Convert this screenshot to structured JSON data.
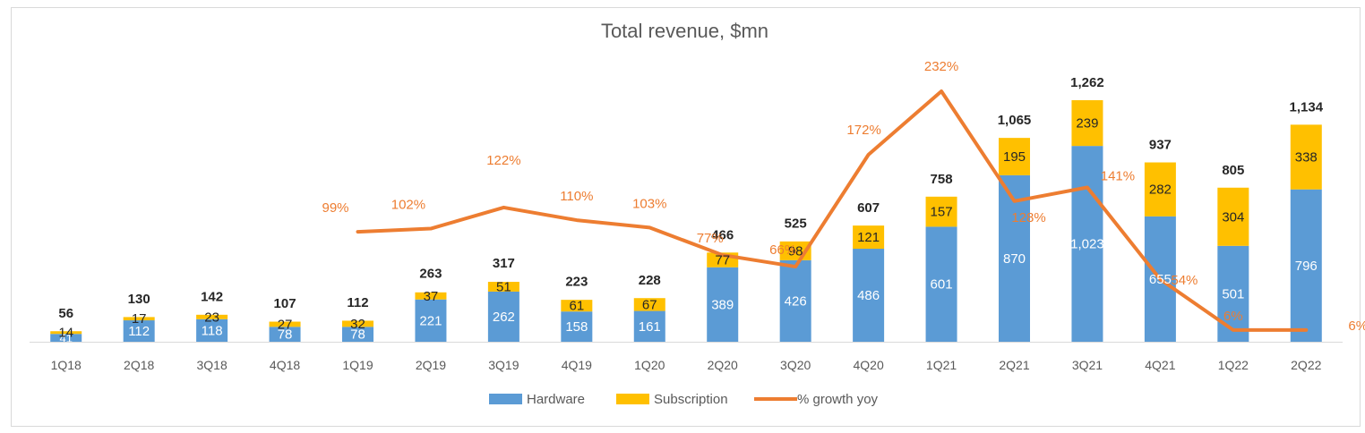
{
  "chart_data": {
    "type": "bar",
    "title": "Total revenue, $mn",
    "categories": [
      "1Q18",
      "2Q18",
      "3Q18",
      "4Q18",
      "1Q19",
      "2Q19",
      "3Q19",
      "4Q19",
      "1Q20",
      "2Q20",
      "3Q20",
      "4Q20",
      "1Q21",
      "2Q21",
      "3Q21",
      "4Q21",
      "1Q22",
      "2Q22"
    ],
    "series": [
      {
        "name": "Hardware",
        "type": "stacked-bar",
        "color": "#5B9BD5",
        "values": [
          41,
          112,
          118,
          78,
          78,
          221,
          262,
          158,
          161,
          389,
          426,
          486,
          601,
          870,
          1023,
          655,
          501,
          796
        ],
        "labels": [
          "41",
          "112",
          "118",
          "78",
          "78",
          "221",
          "262",
          "158",
          "161",
          "389",
          "426",
          "486",
          "601",
          "870",
          "1,023",
          "655",
          "501",
          "796"
        ]
      },
      {
        "name": "Subscription",
        "type": "stacked-bar",
        "color": "#FFC000",
        "values": [
          14,
          17,
          23,
          27,
          32,
          37,
          51,
          61,
          67,
          77,
          98,
          121,
          157,
          195,
          239,
          282,
          304,
          338
        ],
        "labels": [
          "14",
          "17",
          "23",
          "27",
          "32",
          "37",
          "51",
          "61",
          "67",
          "77",
          "98",
          "121",
          "157",
          "195",
          "239",
          "282",
          "304",
          "338"
        ]
      },
      {
        "name": "% growth yoy",
        "type": "line",
        "color": "#ED7D31",
        "values": [
          null,
          null,
          null,
          null,
          99,
          102,
          122,
          110,
          103,
          77,
          66,
          172,
          232,
          128,
          141,
          54,
          6,
          6
        ],
        "labels": [
          "",
          "",
          "",
          "",
          "99%",
          "102%",
          "122%",
          "110%",
          "103%",
          "77%",
          "66%",
          "172%",
          "232%",
          "128%",
          "141%",
          "54%",
          "6%",
          "6%"
        ]
      }
    ],
    "totals": [
      "56",
      "130",
      "142",
      "107",
      "112",
      "263",
      "317",
      "223",
      "228",
      "466",
      "525",
      "607",
      "758",
      "1,065",
      "1,262",
      "937",
      "805",
      "1,134"
    ],
    "total_values": [
      56,
      130,
      142,
      107,
      112,
      263,
      317,
      223,
      228,
      466,
      525,
      607,
      758,
      1065,
      1262,
      937,
      805,
      1134
    ],
    "y_range": [
      0,
      1500
    ],
    "y2_range": [
      0,
      250
    ],
    "grid": false,
    "legend_position": "bottom"
  },
  "colors": {
    "hardware": "#5B9BD5",
    "subscription": "#FFC000",
    "growth": "#ED7D31",
    "total_label": "#262626",
    "axis_text": "#595959",
    "axis_line": "#d9d9d9"
  }
}
